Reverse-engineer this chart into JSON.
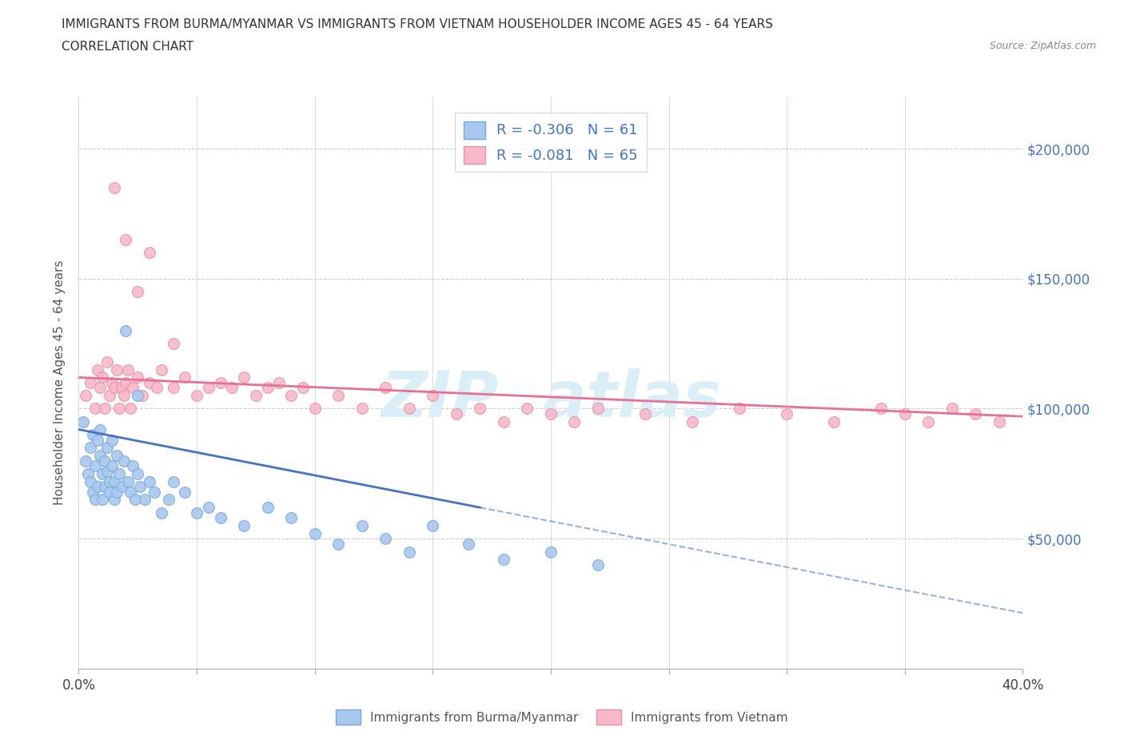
{
  "title_line1": "IMMIGRANTS FROM BURMA/MYANMAR VS IMMIGRANTS FROM VIETNAM HOUSEHOLDER INCOME AGES 45 - 64 YEARS",
  "title_line2": "CORRELATION CHART",
  "source_text": "Source: ZipAtlas.com",
  "ylabel": "Householder Income Ages 45 - 64 years",
  "xlim": [
    0.0,
    0.4
  ],
  "ylim": [
    0,
    220000
  ],
  "xticks": [
    0.0,
    0.05,
    0.1,
    0.15,
    0.2,
    0.25,
    0.3,
    0.35,
    0.4
  ],
  "ytick_positions": [
    50000,
    100000,
    150000,
    200000
  ],
  "ytick_labels": [
    "$50,000",
    "$100,000",
    "$150,000",
    "$200,000"
  ],
  "burma_R": -0.306,
  "burma_N": 61,
  "vietnam_R": -0.081,
  "vietnam_N": 65,
  "burma_color": "#a8c8f0",
  "burma_edge_color": "#7aaad8",
  "vietnam_color": "#f8b8c8",
  "vietnam_edge_color": "#e890a8",
  "burma_line_color": "#4472c4",
  "vietnam_line_color": "#e87090",
  "burma_scatter_x": [
    0.002,
    0.003,
    0.004,
    0.005,
    0.005,
    0.006,
    0.006,
    0.007,
    0.007,
    0.008,
    0.008,
    0.009,
    0.009,
    0.01,
    0.01,
    0.011,
    0.011,
    0.012,
    0.012,
    0.013,
    0.013,
    0.014,
    0.014,
    0.015,
    0.015,
    0.016,
    0.016,
    0.017,
    0.018,
    0.019,
    0.02,
    0.021,
    0.022,
    0.023,
    0.024,
    0.025,
    0.026,
    0.028,
    0.03,
    0.032,
    0.035,
    0.038,
    0.04,
    0.045,
    0.05,
    0.055,
    0.06,
    0.07,
    0.08,
    0.09,
    0.1,
    0.11,
    0.12,
    0.13,
    0.14,
    0.15,
    0.165,
    0.18,
    0.2,
    0.22,
    0.025
  ],
  "burma_scatter_y": [
    95000,
    80000,
    75000,
    85000,
    72000,
    90000,
    68000,
    78000,
    65000,
    88000,
    70000,
    82000,
    92000,
    75000,
    65000,
    80000,
    70000,
    76000,
    85000,
    72000,
    68000,
    78000,
    88000,
    65000,
    72000,
    82000,
    68000,
    75000,
    70000,
    80000,
    130000,
    72000,
    68000,
    78000,
    65000,
    75000,
    70000,
    65000,
    72000,
    68000,
    60000,
    65000,
    72000,
    68000,
    60000,
    62000,
    58000,
    55000,
    62000,
    58000,
    52000,
    48000,
    55000,
    50000,
    45000,
    55000,
    48000,
    42000,
    45000,
    40000,
    105000
  ],
  "vietnam_scatter_x": [
    0.003,
    0.005,
    0.007,
    0.008,
    0.009,
    0.01,
    0.011,
    0.012,
    0.013,
    0.014,
    0.015,
    0.016,
    0.017,
    0.018,
    0.019,
    0.02,
    0.021,
    0.022,
    0.023,
    0.025,
    0.027,
    0.03,
    0.033,
    0.035,
    0.04,
    0.045,
    0.05,
    0.055,
    0.06,
    0.065,
    0.07,
    0.075,
    0.08,
    0.085,
    0.09,
    0.095,
    0.1,
    0.11,
    0.12,
    0.13,
    0.14,
    0.15,
    0.16,
    0.17,
    0.18,
    0.19,
    0.2,
    0.21,
    0.22,
    0.24,
    0.26,
    0.28,
    0.3,
    0.32,
    0.34,
    0.35,
    0.36,
    0.37,
    0.38,
    0.39,
    0.015,
    0.02,
    0.03,
    0.025,
    0.04
  ],
  "vietnam_scatter_y": [
    105000,
    110000,
    100000,
    115000,
    108000,
    112000,
    100000,
    118000,
    105000,
    110000,
    108000,
    115000,
    100000,
    108000,
    105000,
    110000,
    115000,
    100000,
    108000,
    112000,
    105000,
    110000,
    108000,
    115000,
    108000,
    112000,
    105000,
    108000,
    110000,
    108000,
    112000,
    105000,
    108000,
    110000,
    105000,
    108000,
    100000,
    105000,
    100000,
    108000,
    100000,
    105000,
    98000,
    100000,
    95000,
    100000,
    98000,
    95000,
    100000,
    98000,
    95000,
    100000,
    98000,
    95000,
    100000,
    98000,
    95000,
    100000,
    98000,
    95000,
    185000,
    165000,
    160000,
    145000,
    125000
  ],
  "grid_color": "#cccccc",
  "background_color": "#ffffff",
  "watermark_color": "#daeef8"
}
